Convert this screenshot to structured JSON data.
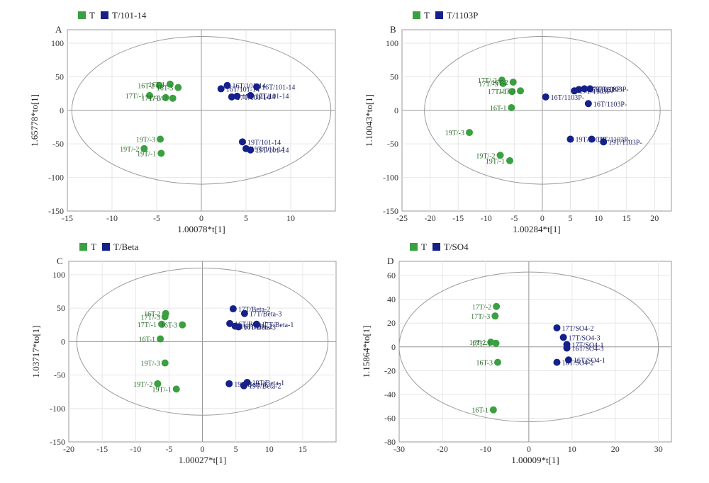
{
  "colors": {
    "t": "#3aa040",
    "treat": "#16208a",
    "axis": "#9a9a9a",
    "grid": "#e6e6e6",
    "text": "#1a1a3a"
  },
  "chart_data": [
    {
      "type": "scatter",
      "panel_label": "A",
      "legend": [
        "T",
        "T/101-14"
      ],
      "xlabel": "1.00078*t[1]",
      "ylabel": "1.65778*to[1]",
      "xlim": [
        -15,
        15
      ],
      "ylim": [
        -150,
        120
      ],
      "xticks": [
        -15,
        -10,
        -5,
        0,
        5,
        10
      ],
      "yticks": [
        100,
        50,
        0,
        -50,
        -100,
        -150
      ],
      "ellipse": {
        "cx": 0,
        "cy": 0,
        "rx": 14.5,
        "ry": 110
      },
      "series": [
        {
          "name": "T",
          "points": [
            {
              "x": -4.7,
              "y": 37,
              "label": "16T-2"
            },
            {
              "x": -3.5,
              "y": 39,
              "label": "16T-1"
            },
            {
              "x": -2.6,
              "y": 34,
              "label": "16T-3"
            },
            {
              "x": -5.8,
              "y": 22,
              "label": "17T/-1"
            },
            {
              "x": -4.0,
              "y": 19,
              "label": "17T/-3"
            },
            {
              "x": -3.2,
              "y": 18,
              "label": "17T/-2"
            },
            {
              "x": -4.6,
              "y": -43,
              "label": "19T/-3"
            },
            {
              "x": -6.4,
              "y": -57,
              "label": "19T/-2"
            },
            {
              "x": -4.5,
              "y": -64,
              "label": "19T/-1"
            }
          ]
        },
        {
          "name": "T/101-14",
          "points": [
            {
              "x": 2.9,
              "y": 37,
              "label": "16T/101-14"
            },
            {
              "x": 2.2,
              "y": 32,
              "label": "16T/101-14"
            },
            {
              "x": 6.2,
              "y": 35,
              "label": "16T/101-14"
            },
            {
              "x": 3.4,
              "y": 20,
              "label": "17T/101-14"
            },
            {
              "x": 4.0,
              "y": 21,
              "label": "17T/101-14"
            },
            {
              "x": 5.5,
              "y": 22,
              "label": "17T/101-14"
            },
            {
              "x": 4.6,
              "y": -47,
              "label": "19T/101-14"
            },
            {
              "x": 5.0,
              "y": -57,
              "label": "19T/101-14"
            },
            {
              "x": 5.5,
              "y": -59,
              "label": "19T/101-14"
            }
          ]
        }
      ]
    },
    {
      "type": "scatter",
      "panel_label": "B",
      "legend": [
        "T",
        "T/1103P"
      ],
      "xlabel": "1.00284*t[1]",
      "ylabel": "1.10043*to[1]",
      "xlim": [
        -25,
        23
      ],
      "ylim": [
        -150,
        120
      ],
      "xticks": [
        -25,
        -20,
        -15,
        -10,
        -5,
        0,
        5,
        10,
        15,
        20
      ],
      "yticks": [
        100,
        50,
        0,
        -50,
        -100,
        -150
      ],
      "ellipse": {
        "cx": 0,
        "cy": 0,
        "rx": 21,
        "ry": 110
      },
      "series": [
        {
          "name": "T",
          "points": [
            {
              "x": -7.2,
              "y": 45,
              "label": "17T/-2"
            },
            {
              "x": -7.0,
              "y": 40,
              "label": "17T/-3"
            },
            {
              "x": -5.2,
              "y": 42,
              "label": "16T-2"
            },
            {
              "x": -5.4,
              "y": 28,
              "label": "17T/-1"
            },
            {
              "x": -3.9,
              "y": 29,
              "label": "16T-3"
            },
            {
              "x": -5.5,
              "y": 4,
              "label": "16T-1"
            },
            {
              "x": -13.0,
              "y": -33,
              "label": "19T/-3"
            },
            {
              "x": -7.5,
              "y": -67,
              "label": "19T/-2"
            },
            {
              "x": -5.8,
              "y": -75,
              "label": "19T/-1"
            }
          ]
        },
        {
          "name": "T/1103P",
          "points": [
            {
              "x": 0.6,
              "y": 20,
              "label": "16T/1103P-"
            },
            {
              "x": 5.7,
              "y": 29,
              "label": "17T/1103P-"
            },
            {
              "x": 6.5,
              "y": 31,
              "label": "17T/1103P-"
            },
            {
              "x": 7.5,
              "y": 32,
              "label": "17T/1103P-"
            },
            {
              "x": 8.5,
              "y": 32,
              "label": "17T/1103P-"
            },
            {
              "x": 8.2,
              "y": 10,
              "label": "16T/1103P-"
            },
            {
              "x": 5.0,
              "y": -43,
              "label": "19T/1103P-"
            },
            {
              "x": 8.8,
              "y": -43,
              "label": "19T/1103P-"
            },
            {
              "x": 10.9,
              "y": -47,
              "label": "19T/1103P-"
            }
          ]
        }
      ]
    },
    {
      "type": "scatter",
      "panel_label": "C",
      "legend": [
        "T",
        "T/Beta"
      ],
      "xlabel": "1.00027*t[1]",
      "ylabel": "1.03717*to[1]",
      "xlim": [
        -20,
        20
      ],
      "ylim": [
        -150,
        120
      ],
      "xticks": [
        -20,
        -15,
        -10,
        -5,
        0,
        5,
        10,
        15
      ],
      "yticks": [
        100,
        50,
        0,
        -50,
        -100,
        -150
      ],
      "ellipse": {
        "cx": 0,
        "cy": 0,
        "rx": 18.8,
        "ry": 110
      },
      "series": [
        {
          "name": "T",
          "points": [
            {
              "x": -5.5,
              "y": 42,
              "label": "16T-2"
            },
            {
              "x": -5.6,
              "y": 37,
              "label": "17T/-3"
            },
            {
              "x": -6.1,
              "y": 26,
              "label": "17T/-1"
            },
            {
              "x": -3.0,
              "y": 25,
              "label": "16T-3"
            },
            {
              "x": -6.3,
              "y": 4,
              "label": "16T-1"
            },
            {
              "x": -5.6,
              "y": -32,
              "label": "19T/-3"
            },
            {
              "x": -6.7,
              "y": -63,
              "label": "19T/-2"
            },
            {
              "x": -3.9,
              "y": -71,
              "label": "19T/-1"
            }
          ]
        },
        {
          "name": "T/Beta",
          "points": [
            {
              "x": 4.6,
              "y": 49,
              "label": "17T/Beta-2"
            },
            {
              "x": 6.3,
              "y": 42,
              "label": "17T/Beta-3"
            },
            {
              "x": 4.1,
              "y": 27,
              "label": "16T/Beta-1"
            },
            {
              "x": 4.9,
              "y": 23,
              "label": "16T/Beta-2"
            },
            {
              "x": 5.4,
              "y": 22,
              "label": "16T/Beta-3"
            },
            {
              "x": 8.1,
              "y": 26,
              "label": "17T/Beta-1"
            },
            {
              "x": 4.0,
              "y": -63,
              "label": "19T/Beta-3"
            },
            {
              "x": 6.2,
              "y": -66,
              "label": "19T/Beta-2"
            },
            {
              "x": 6.7,
              "y": -61,
              "label": "19T/Beta-1"
            }
          ]
        }
      ]
    },
    {
      "type": "scatter",
      "panel_label": "D",
      "legend": [
        "T",
        "T/SO4"
      ],
      "xlabel": "1.00009*t[1]",
      "ylabel": "1.15864*to[1]",
      "xlim": [
        -30,
        33
      ],
      "ylim": [
        -80,
        72
      ],
      "xticks": [
        -30,
        -20,
        -10,
        0,
        10,
        20,
        30
      ],
      "yticks": [
        60,
        40,
        20,
        0,
        -20,
        -40,
        -60,
        -80
      ],
      "ellipse": {
        "cx": 0,
        "cy": 0,
        "rx": 30,
        "ry": 63
      },
      "series": [
        {
          "name": "T",
          "points": [
            {
              "x": -7.5,
              "y": 34,
              "label": "17T/-2"
            },
            {
              "x": -7.8,
              "y": 26,
              "label": "17T/-3"
            },
            {
              "x": -8.8,
              "y": 4,
              "label": "16T-2"
            },
            {
              "x": -7.6,
              "y": 3,
              "label": "17T/-1"
            },
            {
              "x": -7.2,
              "y": -13,
              "label": "16T-3"
            },
            {
              "x": -8.2,
              "y": -53,
              "label": "16T-1"
            }
          ]
        },
        {
          "name": "T/SO4",
          "points": [
            {
              "x": 6.5,
              "y": 16,
              "label": "17T/SO4-2"
            },
            {
              "x": 8.0,
              "y": 8,
              "label": "17T/SO4-3"
            },
            {
              "x": 8.8,
              "y": 2,
              "label": "17T/SO4-1"
            },
            {
              "x": 8.8,
              "y": -1,
              "label": "16T/SO4-3"
            },
            {
              "x": 6.5,
              "y": -13,
              "label": "16T/SO4-2"
            },
            {
              "x": 9.2,
              "y": -11,
              "label": "16T/SO4-1"
            }
          ]
        }
      ]
    }
  ]
}
